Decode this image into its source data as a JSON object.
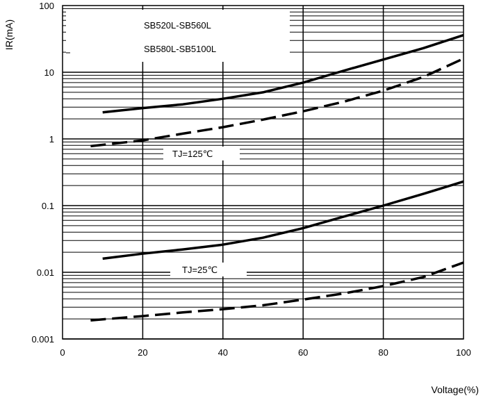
{
  "chart_data": {
    "type": "line",
    "xlabel": "Voltage(%)",
    "ylabel": "IR(mA)",
    "xlim": [
      0,
      100
    ],
    "ylim": [
      0.001,
      100
    ],
    "yscale": "log",
    "grid": true,
    "x_ticks": [
      "0",
      "20",
      "40",
      "60",
      "80",
      "100"
    ],
    "y_ticks": [
      "0.001",
      "0.01",
      "0.1",
      "1",
      "10",
      "100"
    ],
    "legend_lines": [
      "SB520L-SB560L",
      "SB580L-SB5100L"
    ],
    "annotations": [
      "TJ=125℃",
      "TJ=25℃"
    ],
    "series": [
      {
        "style": "solid",
        "x": [
          10,
          20,
          30,
          40,
          50,
          60,
          70,
          80,
          90,
          100
        ],
        "y": [
          2.5,
          2.9,
          3.3,
          4.0,
          5.0,
          7.0,
          10.5,
          15.5,
          23.0,
          36.0
        ]
      },
      {
        "style": "dashed",
        "x": [
          7,
          20,
          30,
          40,
          50,
          60,
          70,
          80,
          90,
          100
        ],
        "y": [
          0.78,
          0.95,
          1.2,
          1.5,
          1.95,
          2.6,
          3.6,
          5.3,
          8.5,
          16.0
        ]
      },
      {
        "style": "solid",
        "x": [
          10,
          20,
          30,
          40,
          50,
          60,
          70,
          80,
          90,
          100
        ],
        "y": [
          0.016,
          0.019,
          0.022,
          0.026,
          0.033,
          0.046,
          0.068,
          0.1,
          0.15,
          0.23
        ]
      },
      {
        "style": "dashed",
        "x": [
          7,
          20,
          30,
          40,
          50,
          60,
          70,
          80,
          90,
          100
        ],
        "y": [
          0.0019,
          0.0022,
          0.0025,
          0.0028,
          0.0032,
          0.0039,
          0.0048,
          0.0062,
          0.0085,
          0.014
        ]
      }
    ]
  }
}
